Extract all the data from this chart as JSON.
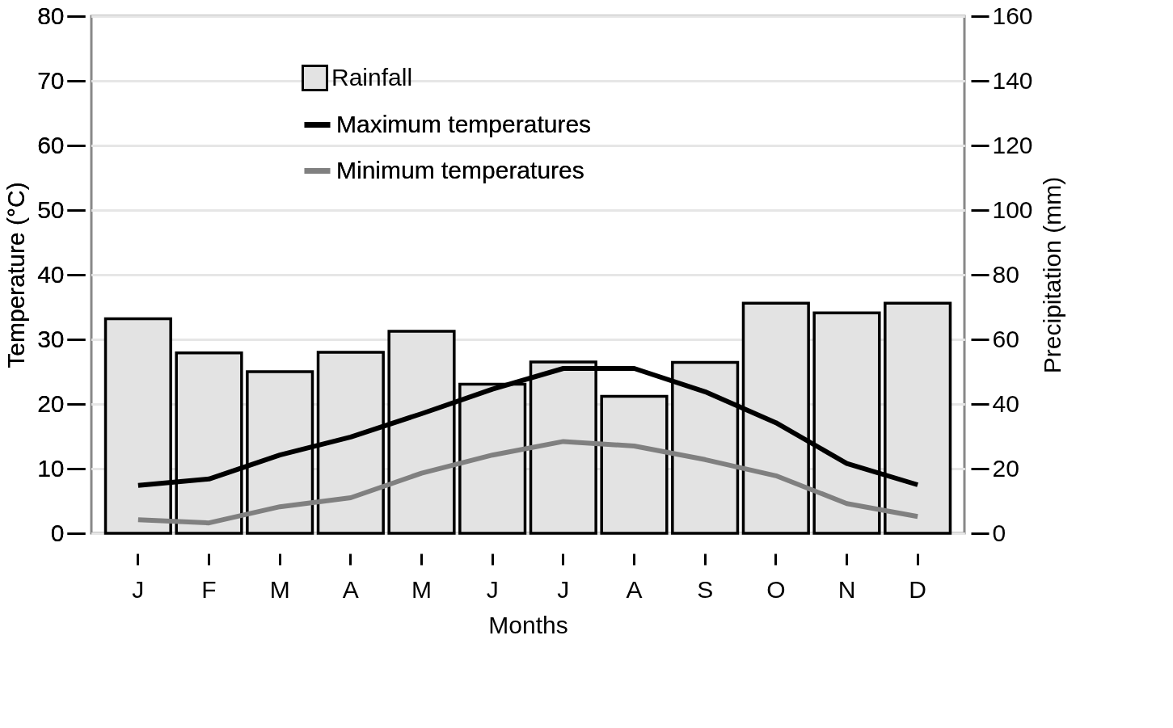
{
  "chart_data": {
    "type": "bar",
    "xlabel": "Months",
    "ylabel": "Temperature (°C)",
    "y2label": "Precipitation (mm)",
    "categories": [
      "J",
      "F",
      "M",
      "A",
      "M",
      "J",
      "J",
      "A",
      "S",
      "O",
      "N",
      "D"
    ],
    "series": [
      {
        "name": "Rainfall",
        "axis": "y2",
        "color": "#e3e3e3",
        "values": [
          66.4,
          55.8,
          50.0,
          56.0,
          62.5,
          46.1,
          53.0,
          42.4,
          52.9,
          71.2,
          68.2,
          71.2
        ]
      },
      {
        "name": "Maximum temperatures",
        "type": "line",
        "color": "#000000",
        "values": [
          7.4,
          8.4,
          12.1,
          14.9,
          18.5,
          22.3,
          25.5,
          25.5,
          21.9,
          17.1,
          10.8,
          7.5
        ]
      },
      {
        "name": "Minimum temperatures",
        "type": "line",
        "color": "#808080",
        "values": [
          2.1,
          1.6,
          4.1,
          5.5,
          9.3,
          12.1,
          14.2,
          13.5,
          11.4,
          8.9,
          4.6,
          2.6
        ]
      }
    ],
    "ylim": [
      0,
      80
    ],
    "yticks": [
      0,
      10,
      20,
      30,
      40,
      50,
      60,
      70,
      80
    ],
    "y2lim": [
      0,
      160
    ],
    "y2ticks": [
      0,
      20,
      40,
      60,
      80,
      100,
      120,
      140,
      160
    ],
    "grid": "y",
    "legend": "top"
  }
}
